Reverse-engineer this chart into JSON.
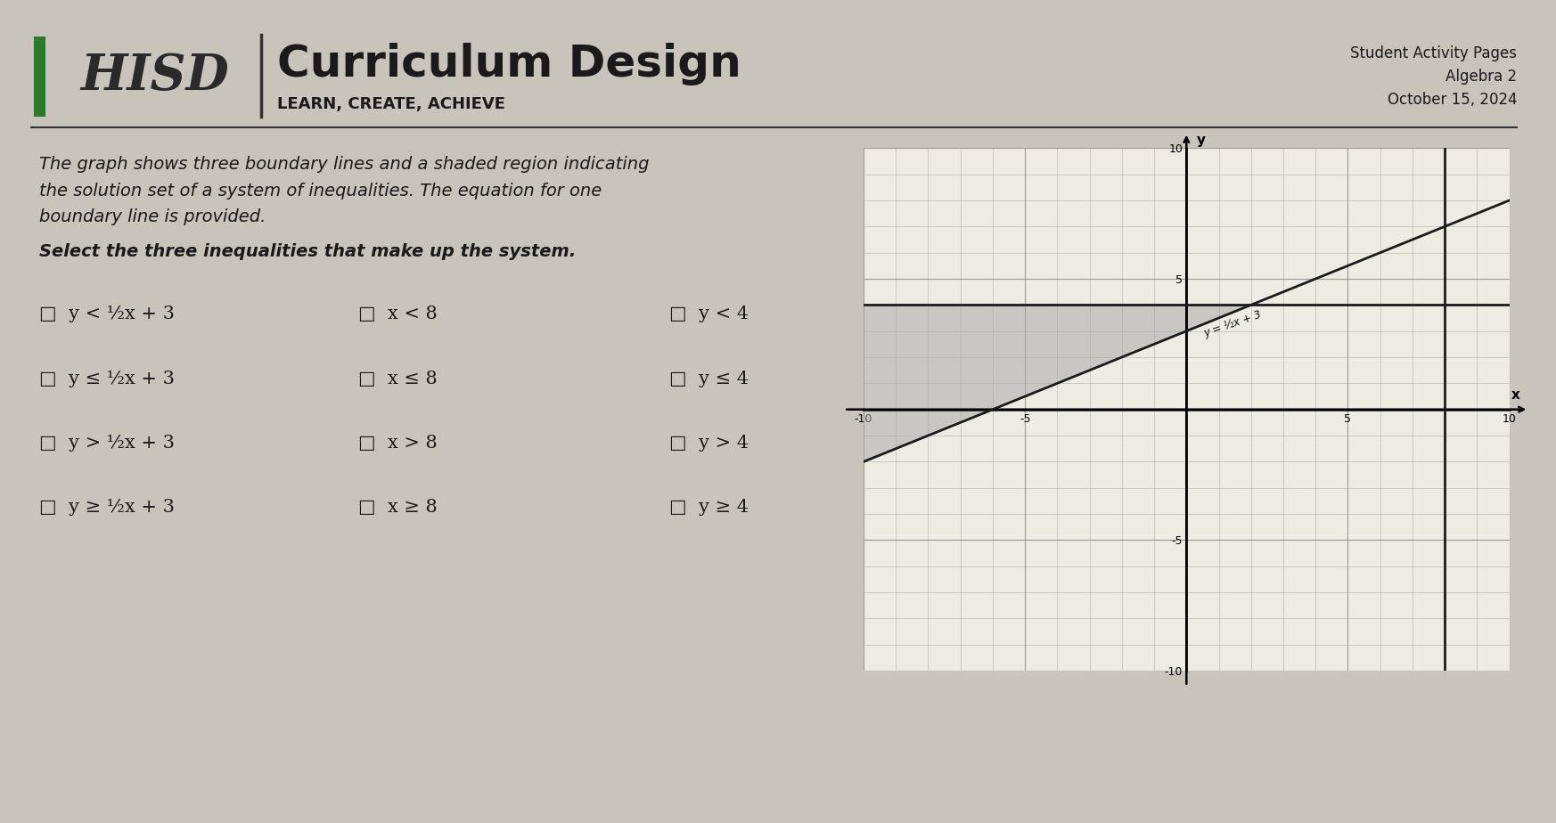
{
  "bg_color": "#c8c4bc",
  "paper_color": "#e8e4dc",
  "green_color": "#2d7a2d",
  "title_text": "Curriculum Design",
  "subtitle_text": "LEARN, CREATE, ACHIEVE",
  "right_top_line1": "Student Activity Pages",
  "right_top_line2": "Algebra 2",
  "right_top_line3": "October 15, 2024",
  "problem_text_line1": "The graph shows three boundary lines and a shaded region indicating",
  "problem_text_line2": "the solution set of a system of inequalities. The equation for one",
  "problem_text_line3": "boundary line is provided.",
  "select_text": "Select the three inequalities that make up the system.",
  "choices": [
    [
      "□  y < ½x + 3",
      "□  x < 8",
      "□  y < 4"
    ],
    [
      "□  y ≤ ½x + 3",
      "□  x ≤ 8",
      "□  y ≤ 4"
    ],
    [
      "□  y > ½x + 3",
      "□  x > 8",
      "□  y > 4"
    ],
    [
      "□  y ≥ ½x + 3",
      "□  x ≥ 8",
      "□  y ≥ 4"
    ]
  ],
  "graph_xlim": [
    -10,
    10
  ],
  "graph_ylim": [
    -10,
    10
  ],
  "graph_xticks_major": [
    -10,
    -5,
    0,
    5,
    10
  ],
  "graph_yticks_major": [
    -10,
    -5,
    0,
    5,
    10
  ],
  "line_label": "y = ½x + 3",
  "shaded_color": "#aaaaaa",
  "line_color": "#1a1a1a",
  "grid_color": "#888888"
}
